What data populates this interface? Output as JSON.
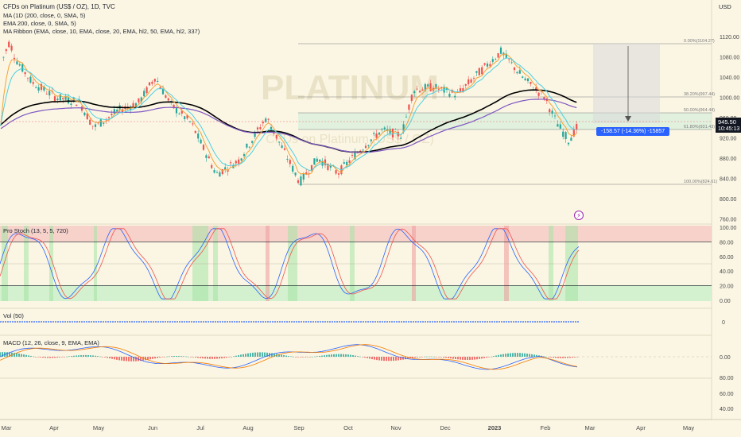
{
  "header": {
    "title": "CFDs on Platinum (US$ / OZ), 1D, TVC",
    "indicators": [
      "MA (1D (200, close, 0, SMA, 5)",
      "EMA 200, close, 0, SMA, 5)",
      "MA Ribbon (EMA, close, 10, EMA, close, 20, EMA, hl2, 50, EMA, hl2, 337)"
    ]
  },
  "watermark": {
    "symbol": "PLATINUM",
    "subtitle": "CFDs on Platinum (US$ / OZ)"
  },
  "price_axis": {
    "currency": "USD",
    "ticks": [
      "1120.00",
      "1080.00",
      "1040.00",
      "1000.00",
      "960.00",
      "920.00",
      "880.00",
      "840.00",
      "800.00",
      "760.00"
    ],
    "current_price": "945.50",
    "countdown": "10:45:13"
  },
  "fib_levels": [
    {
      "label": "0.00%(1104.27)"
    },
    {
      "label": "38.20%(997.44)"
    },
    {
      "label": "50.00%(964.44)"
    },
    {
      "label": "61.80%(931.43)"
    },
    {
      "label": "100.00%(824.61)"
    }
  ],
  "measure": {
    "label": "-158.57 (-14.36%) -15857"
  },
  "stoch": {
    "title": "Pro Stoch (13, 5, 5, 720)",
    "ticks": [
      "100.00",
      "80.00",
      "60.00",
      "40.00",
      "20.00",
      "0.00"
    ]
  },
  "vol": {
    "title": "Vol (50)",
    "tick": "0"
  },
  "macd": {
    "title": "MACD (12, 26, close, 9, EMA, EMA)",
    "tick": "0.00"
  },
  "bottom": {
    "ticks": [
      "80.00",
      "60.00",
      "40.00"
    ]
  },
  "time_axis": [
    "Mar",
    "Apr",
    "May",
    "Jun",
    "Jul",
    "Aug",
    "Sep",
    "Oct",
    "Nov",
    "Dec",
    "2023",
    "Feb",
    "Mar",
    "Apr",
    "May"
  ],
  "colors": {
    "background": "#fbf6e4",
    "up": "#26a69a",
    "down": "#ef5350",
    "current_price_bg": "#131722",
    "measure_bg": "#2962ff",
    "ma200": "#000000",
    "ema200": "#7e57c2",
    "ribbon10": "#f2a33a",
    "ribbon20": "#4dd0e1"
  }
}
